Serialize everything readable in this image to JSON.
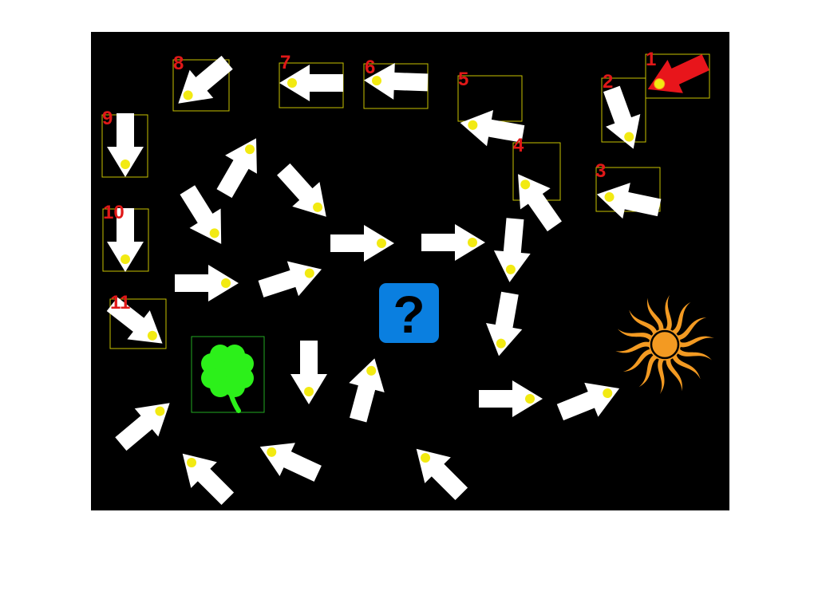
{
  "puzzle": {
    "question_label": "?",
    "labels": [
      "1",
      "2",
      "3",
      "4",
      "5",
      "6",
      "7",
      "8",
      "9",
      "10",
      "11"
    ],
    "colors": {
      "background": "#000000",
      "arrow": "#ffffff",
      "active_arrow": "#e8151b",
      "dot": "#f2ea12",
      "highlight_box": "#c8c200",
      "label": "#e01818",
      "clover": "#2cf01a",
      "clover_box": "#22aa22",
      "sun": "#f39a22",
      "question_box": "#0a7fe0"
    },
    "icons": {
      "clover": "four-leaf-clover-icon",
      "sun": "sun-icon",
      "question": "question-mark-icon"
    }
  }
}
